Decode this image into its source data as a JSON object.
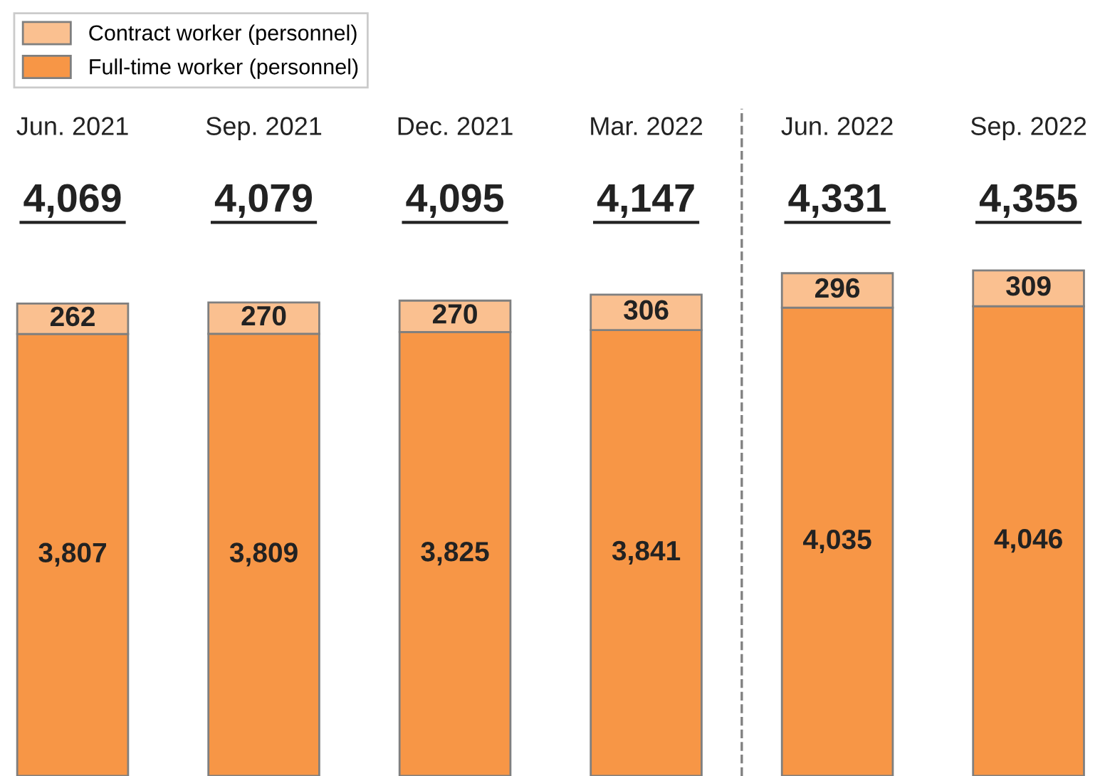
{
  "chart_data": {
    "type": "bar",
    "stacked": true,
    "legend": "top left",
    "grid": false,
    "categories": [
      "Jun. 2021",
      "Sep. 2021",
      "Dec. 2021",
      "Mar. 2022",
      "Jun. 2022",
      "Sep. 2022"
    ],
    "series": [
      {
        "name": "Full-time worker (personnel)",
        "color": "#f79646",
        "values": [
          3807,
          3809,
          3825,
          3841,
          4035,
          4046
        ],
        "value_labels": [
          "3,807",
          "3,809",
          "3,825",
          "3,841",
          "4,035",
          "4,046"
        ]
      },
      {
        "name": "Contract worker (personnel)",
        "color": "#fac090",
        "values": [
          262,
          270,
          270,
          306,
          296,
          309
        ],
        "value_labels": [
          "262",
          "270",
          "270",
          "306",
          "296",
          "309"
        ]
      }
    ],
    "totals": [
      "4,069",
      "4,079",
      "4,095",
      "4,147",
      "4,331",
      "4,355"
    ]
  }
}
